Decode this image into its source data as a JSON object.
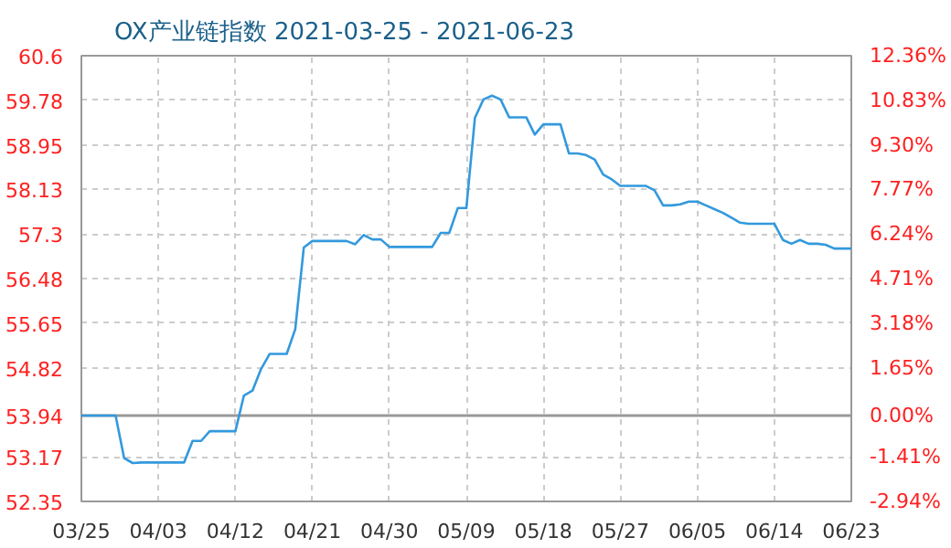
{
  "chart_data": {
    "type": "line",
    "title": "OX产业链指数 2021-03-25 - 2021-06-23",
    "x": [
      "2021-03-25",
      "2021-03-26",
      "2021-03-27",
      "2021-03-28",
      "2021-03-29",
      "2021-03-30",
      "2021-03-31",
      "2021-04-01",
      "2021-04-02",
      "2021-04-03",
      "2021-04-04",
      "2021-04-05",
      "2021-04-06",
      "2021-04-07",
      "2021-04-08",
      "2021-04-09",
      "2021-04-10",
      "2021-04-11",
      "2021-04-12",
      "2021-04-13",
      "2021-04-14",
      "2021-04-15",
      "2021-04-16",
      "2021-04-17",
      "2021-04-18",
      "2021-04-19",
      "2021-04-20",
      "2021-04-21",
      "2021-04-22",
      "2021-04-23",
      "2021-04-24",
      "2021-04-25",
      "2021-04-26",
      "2021-04-27",
      "2021-04-28",
      "2021-04-29",
      "2021-04-30",
      "2021-05-01",
      "2021-05-02",
      "2021-05-03",
      "2021-05-04",
      "2021-05-05",
      "2021-05-06",
      "2021-05-07",
      "2021-05-08",
      "2021-05-09",
      "2021-05-10",
      "2021-05-11",
      "2021-05-12",
      "2021-05-13",
      "2021-05-14",
      "2021-05-15",
      "2021-05-16",
      "2021-05-17",
      "2021-05-18",
      "2021-05-19",
      "2021-05-20",
      "2021-05-21",
      "2021-05-22",
      "2021-05-23",
      "2021-05-24",
      "2021-05-25",
      "2021-05-26",
      "2021-05-27",
      "2021-05-28",
      "2021-05-29",
      "2021-05-30",
      "2021-05-31",
      "2021-06-01",
      "2021-06-02",
      "2021-06-03",
      "2021-06-04",
      "2021-06-05",
      "2021-06-06",
      "2021-06-07",
      "2021-06-08",
      "2021-06-09",
      "2021-06-10",
      "2021-06-11",
      "2021-06-12",
      "2021-06-13",
      "2021-06-14",
      "2021-06-15",
      "2021-06-16",
      "2021-06-17",
      "2021-06-18",
      "2021-06-19",
      "2021-06-20",
      "2021-06-21",
      "2021-06-22",
      "2021-06-23"
    ],
    "series": [
      {
        "color": "#3399dd",
        "values": [
          53.94,
          53.94,
          53.94,
          53.94,
          53.94,
          53.15,
          53.06,
          53.07,
          53.07,
          53.07,
          53.07,
          53.07,
          53.07,
          53.47,
          53.47,
          53.65,
          53.65,
          53.65,
          53.65,
          54.31,
          54.4,
          54.8,
          55.08,
          55.08,
          55.08,
          55.54,
          57.05,
          57.17,
          57.17,
          57.17,
          57.17,
          57.17,
          57.11,
          57.28,
          57.2,
          57.2,
          57.06,
          57.06,
          57.06,
          57.06,
          57.06,
          57.06,
          57.32,
          57.32,
          57.78,
          57.78,
          59.45,
          59.79,
          59.86,
          59.79,
          59.46,
          59.46,
          59.46,
          59.14,
          59.33,
          59.33,
          59.33,
          58.79,
          58.79,
          58.76,
          58.68,
          58.4,
          58.31,
          58.19,
          58.19,
          58.19,
          58.19,
          58.11,
          57.83,
          57.83,
          57.85,
          57.9,
          57.9,
          57.83,
          57.76,
          57.69,
          57.6,
          57.51,
          57.49,
          57.49,
          57.49,
          57.49,
          57.19,
          57.12,
          57.19,
          57.12,
          57.12,
          57.1,
          57.03,
          57.03,
          57.03
        ]
      }
    ],
    "xlim": [
      "2021-03-25",
      "2021-06-23"
    ],
    "xticks": [
      {
        "value": "2021-03-25",
        "label": "03/25"
      },
      {
        "value": "2021-04-03",
        "label": "04/03"
      },
      {
        "value": "2021-04-12",
        "label": "04/12"
      },
      {
        "value": "2021-04-21",
        "label": "04/21"
      },
      {
        "value": "2021-04-30",
        "label": "04/30"
      },
      {
        "value": "2021-05-09",
        "label": "05/09"
      },
      {
        "value": "2021-05-18",
        "label": "05/18"
      },
      {
        "value": "2021-05-27",
        "label": "05/27"
      },
      {
        "value": "2021-06-05",
        "label": "06/05"
      },
      {
        "value": "2021-06-14",
        "label": "06/14"
      },
      {
        "value": "2021-06-23",
        "label": "06/23"
      }
    ],
    "ylim": [
      52.35,
      60.6
    ],
    "yticks": [
      52.35,
      53.17,
      53.94,
      54.82,
      55.65,
      56.48,
      57.3,
      58.13,
      58.95,
      59.78,
      60.6
    ],
    "y2lim": [
      -2.94,
      12.36
    ],
    "y2ticks": [
      {
        "value": -2.94,
        "label": "-2.94%"
      },
      {
        "value": -1.41,
        "label": "-1.41%"
      },
      {
        "value": 0,
        "label": "0.00%"
      },
      {
        "value": 1.65,
        "label": "1.65%"
      },
      {
        "value": 3.18,
        "label": "3.18%"
      },
      {
        "value": 4.71,
        "label": "4.71%"
      },
      {
        "value": 6.24,
        "label": "6.24%"
      },
      {
        "value": 7.77,
        "label": "7.77%"
      },
      {
        "value": 9.3,
        "label": "9.30%"
      },
      {
        "value": 10.83,
        "label": "10.83%"
      },
      {
        "value": 12.36,
        "label": "12.36%"
      }
    ],
    "ref_lines": [
      {
        "axis": "y",
        "value": 53.94,
        "color": "#999999",
        "line_style": "solid"
      }
    ],
    "grid": true,
    "marker": "none",
    "line_style": "solid"
  }
}
